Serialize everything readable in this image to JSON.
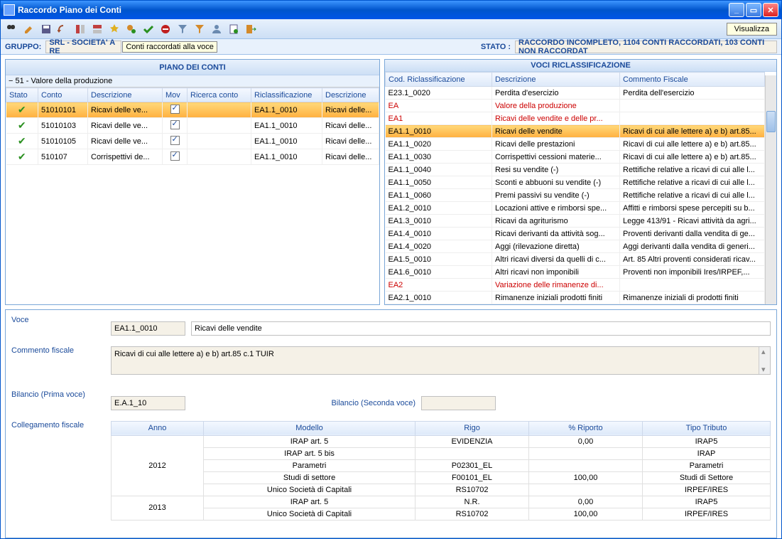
{
  "window": {
    "title": "Raccordo Piano dei Conti",
    "visualizza": "Visualizza"
  },
  "infobar": {
    "gruppo_label": "GRUPPO:",
    "gruppo_value": "SRL - SOCIETA' A RE",
    "tooltip": "Conti raccordati alla voce",
    "stato_label": "STATO :",
    "stato_value": "RACCORDO INCOMPLETO, 1104 CONTI RACCORDATI, 103 CONTI NON RACCORDAT"
  },
  "left_panel": {
    "title": "PIANO DEI CONTI",
    "tree_header": "− 51 - Valore della produzione",
    "columns": [
      "Stato",
      "Conto",
      "Descrizione",
      "Mov",
      "Ricerca conto",
      "Riclassificazione",
      "Descrizione"
    ],
    "rows": [
      {
        "conto": "51010101",
        "desc": "Ricavi delle ve...",
        "ric": "EA1.1_0010",
        "rdesc": "Ricavi delle...",
        "hl": true
      },
      {
        "conto": "51010103",
        "desc": "Ricavi delle ve...",
        "ric": "EA1.1_0010",
        "rdesc": "Ricavi delle...",
        "hl": false
      },
      {
        "conto": "51010105",
        "desc": "Ricavi delle ve...",
        "ric": "EA1.1_0010",
        "rdesc": "Ricavi delle...",
        "hl": false
      },
      {
        "conto": "510107",
        "desc": "Corrispettivi de...",
        "ric": "EA1.1_0010",
        "rdesc": "Ricavi delle...",
        "hl": false
      }
    ]
  },
  "right_panel": {
    "title": "VOCI RICLASSIFICAZIONE",
    "columns": [
      "Cod. Riclassificazione",
      "Descrizione",
      "Commento Fiscale"
    ],
    "rows": [
      {
        "cod": "E23.1_0020",
        "desc": "Perdita d'esercizio",
        "com": "Perdita dell'esercizio"
      },
      {
        "cod": "EA",
        "desc": "Valore della produzione",
        "com": "",
        "red": true
      },
      {
        "cod": "EA1",
        "desc": "Ricavi delle vendite e delle pr...",
        "com": "",
        "red": true
      },
      {
        "cod": "EA1.1_0010",
        "desc": "Ricavi delle vendite",
        "com": "Ricavi di cui alle lettere a) e b) art.85...",
        "hl": true
      },
      {
        "cod": "EA1.1_0020",
        "desc": "Ricavi delle prestazioni",
        "com": "Ricavi di cui alle lettere a) e b) art.85..."
      },
      {
        "cod": "EA1.1_0030",
        "desc": "Corrispettivi cessioni materie...",
        "com": "Ricavi di cui alle lettere a) e b) art.85..."
      },
      {
        "cod": "EA1.1_0040",
        "desc": "Resi su vendite (-)",
        "com": "Rettifiche relative a ricavi di cui alle l..."
      },
      {
        "cod": "EA1.1_0050",
        "desc": "Sconti e abbuoni su vendite (-)",
        "com": "Rettifiche relative a ricavi di cui alle l..."
      },
      {
        "cod": "EA1.1_0060",
        "desc": "Premi passivi su vendite (-)",
        "com": "Rettifiche relative a ricavi di cui alle l..."
      },
      {
        "cod": "EA1.2_0010",
        "desc": "Locazioni attive e rimborsi spe...",
        "com": "Affitti e rimborsi spese percepiti su b..."
      },
      {
        "cod": "EA1.3_0010",
        "desc": "Ricavi da agriturismo",
        "com": "Legge 413/91 - Ricavi attività da agri..."
      },
      {
        "cod": "EA1.4_0010",
        "desc": "Ricavi derivanti da attività sog...",
        "com": "Proventi derivanti dalla vendita di ge..."
      },
      {
        "cod": "EA1.4_0020",
        "desc": "Aggi (rilevazione diretta)",
        "com": "Aggi derivanti dalla vendita di generi..."
      },
      {
        "cod": "EA1.5_0010",
        "desc": "Altri ricavi diversi da quelli di c...",
        "com": "Art. 85 Altri proventi considerati ricav..."
      },
      {
        "cod": "EA1.6_0010",
        "desc": "Altri ricavi non imponibili",
        "com": "Proventi non imponibili Ires/IRPEF,..."
      },
      {
        "cod": "EA2",
        "desc": "Variazione delle rimanenze di...",
        "com": "",
        "red": true
      },
      {
        "cod": "EA2.1_0010",
        "desc": "Rimanenze iniziali prodotti finiti",
        "com": "Rimanenze iniziali di prodotti finiti"
      }
    ]
  },
  "detail": {
    "voce_label": "Voce",
    "voce_code": "EA1.1_0010",
    "voce_desc": "Ricavi delle vendite",
    "commento_label": "Commento fiscale",
    "commento_text": "Ricavi di cui alle lettere a) e b) art.85 c.1 TUIR",
    "bilancio1_label": "Bilancio (Prima voce)",
    "bilancio1_value": "E.A.1_10",
    "bilancio2_label": "Bilancio (Seconda voce)",
    "bilancio2_value": "",
    "collegamento_label": "Collegamento fiscale",
    "link_columns": [
      "Anno",
      "Modello",
      "Rigo",
      "% Riporto",
      "Tipo Tributo"
    ],
    "link_rows": [
      {
        "anno": "2012",
        "span": 5,
        "modello": "IRAP art. 5",
        "rigo": "EVIDENZIA",
        "riporto": "0,00",
        "tributo": "IRAP5"
      },
      {
        "modello": "IRAP art. 5 bis",
        "rigo": "",
        "riporto": "",
        "tributo": "IRAP"
      },
      {
        "modello": "Parametri",
        "rigo": "P02301_EL",
        "riporto": "",
        "tributo": "Parametri"
      },
      {
        "modello": "Studi di settore",
        "rigo": "F00101_EL",
        "riporto": "100,00",
        "tributo": "Studi di Settore"
      },
      {
        "modello": "Unico Società di Capitali",
        "rigo": "RS10702",
        "riporto": "",
        "tributo": "IRPEF/IRES"
      },
      {
        "anno": "2013",
        "span": 2,
        "modello": "IRAP art. 5",
        "rigo": "N.R.",
        "riporto": "0,00",
        "tributo": "IRAP5"
      },
      {
        "modello": "Unico Società di Capitali",
        "rigo": "RS10702",
        "riporto": "100,00",
        "tributo": "IRPEF/IRES"
      }
    ]
  },
  "icons": {
    "search": "#333",
    "edit": "#d48a2a",
    "save": "#5a5a8a",
    "undo": "#a05030",
    "grid1": "#c04040",
    "grid2": "#c04040",
    "star": "#e0b020",
    "gears": "#d48a2a",
    "check": "#2a9020",
    "stop": "#c02020",
    "funnel": "#5a5a8a",
    "funnel2": "#d48a2a",
    "user": "#6a8ab0",
    "page": "#5a5a8a",
    "exit": "#d48a2a"
  }
}
